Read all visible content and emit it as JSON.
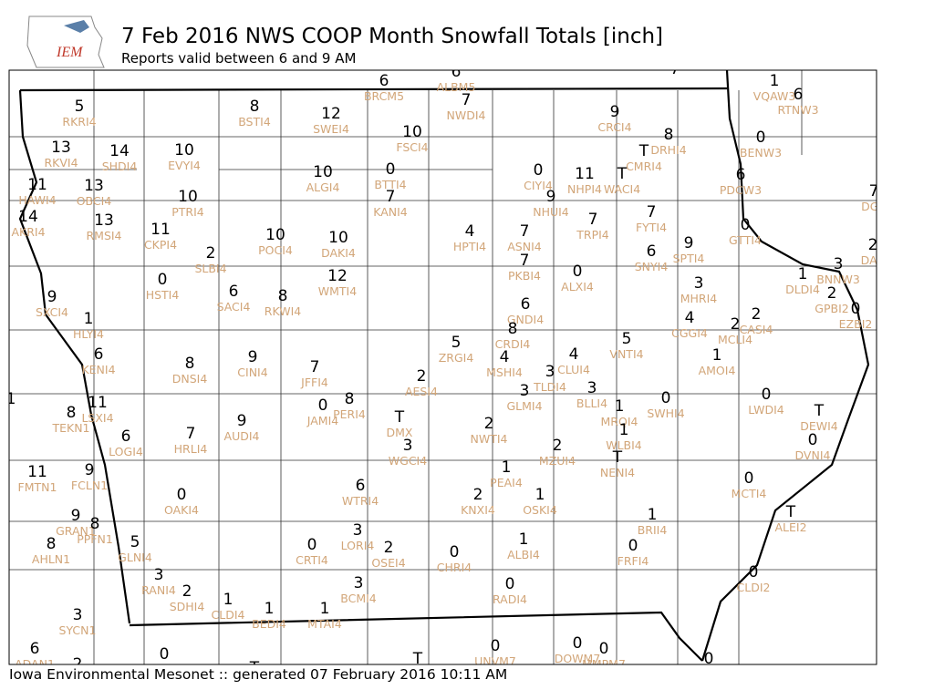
{
  "header": {
    "logo": "IEM",
    "title": "7 Feb 2016 NWS COOP Month Snowfall Totals [inch]",
    "subtitle": "Reports valid between 6 and 9 AM"
  },
  "stations": [
    {
      "value": 5,
      "id": "RKRI4"
    },
    {
      "value": 8,
      "id": "BSTI4"
    },
    {
      "value": 12,
      "id": "SWEI4"
    },
    {
      "value": 6,
      "id": "BRCM5"
    },
    {
      "value": 6,
      "id": "ALBM5"
    },
    {
      "value": 7,
      "id": "NWDI4"
    },
    {
      "value": 10,
      "id": "FSCI4"
    },
    {
      "value": 9,
      "id": "CRCI4"
    },
    {
      "value": 8,
      "id": "DRHI4"
    },
    {
      "value": "T",
      "id": "CMRI4"
    },
    {
      "value": 1,
      "id": "VQAW3"
    },
    {
      "value": 6,
      "id": "RTNW3"
    },
    {
      "value": 0,
      "id": "BENW3"
    },
    {
      "value": 13,
      "id": "RKVI4"
    },
    {
      "value": 14,
      "id": "SHDI4"
    },
    {
      "value": 10,
      "id": "EVYI4"
    },
    {
      "value": 10,
      "id": "ALGI4"
    },
    {
      "value": 0,
      "id": "BTTI4"
    },
    {
      "value": 0,
      "id": "CIYI4"
    },
    {
      "value": 11,
      "id": "NHPI4"
    },
    {
      "value": "T",
      "id": "WACI4"
    },
    {
      "value": 6,
      "id": "PDCW3"
    },
    {
      "value": 11,
      "id": "HAWI4"
    },
    {
      "value": 13,
      "id": "OBCI4"
    },
    {
      "value": 10,
      "id": "PTRI4"
    },
    {
      "value": 7,
      "id": "KANI4"
    },
    {
      "value": 9,
      "id": "NHUI4"
    },
    {
      "value": 7,
      "id": "FYTI4"
    },
    {
      "value": 7,
      "id": "DGV"
    },
    {
      "value": 14,
      "id": "AKRI4"
    },
    {
      "value": 13,
      "id": "RMSI4"
    },
    {
      "value": 11,
      "id": "CKPI4"
    },
    {
      "value": 10,
      "id": "POCI4"
    },
    {
      "value": 10,
      "id": "DAKI4"
    },
    {
      "value": 4,
      "id": "HPTI4"
    },
    {
      "value": 7,
      "id": "ASNI4"
    },
    {
      "value": 7,
      "id": "TRPI4"
    },
    {
      "value": 0,
      "id": "GTTI4"
    },
    {
      "value": 2,
      "id": "DAR"
    },
    {
      "value": 9,
      "id": "SPTI4"
    },
    {
      "value": 6,
      "id": "SNYI4"
    },
    {
      "value": 2,
      "id": "SLBI4"
    },
    {
      "value": 7,
      "id": "PKBI4"
    },
    {
      "value": 0,
      "id": "ALXI4"
    },
    {
      "value": 3,
      "id": "MHRI4"
    },
    {
      "value": 3,
      "id": "BNNW3"
    },
    {
      "value": 1,
      "id": "DLDI4"
    },
    {
      "value": 0,
      "id": "HSTI4"
    },
    {
      "value": 12,
      "id": "WMTI4"
    },
    {
      "value": 6,
      "id": "SACI4"
    },
    {
      "value": 8,
      "id": "RKWI4"
    },
    {
      "value": 2,
      "id": "GPBI2"
    },
    {
      "value": 0,
      "id": "EZBI2"
    },
    {
      "value": 9,
      "id": "SXCI4"
    },
    {
      "value": 1,
      "id": "HLYI4"
    },
    {
      "value": 6,
      "id": "GNDI4"
    },
    {
      "value": 4,
      "id": "CGGI4"
    },
    {
      "value": 2,
      "id": "CASI4"
    },
    {
      "value": 2,
      "id": "MCLI4"
    },
    {
      "value": 8,
      "id": "CRDI4"
    },
    {
      "value": 5,
      "id": "ZRGI4"
    },
    {
      "value": 5,
      "id": "VNTI4"
    },
    {
      "value": 6,
      "id": "KENI4"
    },
    {
      "value": 4,
      "id": "MSHI4"
    },
    {
      "value": 4,
      "id": "CLUI4"
    },
    {
      "value": 8,
      "id": "DNSI4"
    },
    {
      "value": 9,
      "id": "CINI4"
    },
    {
      "value": 7,
      "id": "JFFI4"
    },
    {
      "value": 1,
      "id": "AMOI4"
    },
    {
      "value": 3,
      "id": "TLDI4"
    },
    {
      "value": 2,
      "id": "AESI4"
    },
    {
      "value": 3,
      "id": "BLLI4"
    },
    {
      "value": 3,
      "id": "GLMI4"
    },
    {
      "value": 0,
      "id": "LWDI4"
    },
    {
      "value": 1
    },
    {
      "value": 8,
      "id": "TEKN1"
    },
    {
      "value": 11,
      "id": "LSXI4"
    },
    {
      "value": 0,
      "id": "JAMI4"
    },
    {
      "value": 8,
      "id": "PERI4"
    },
    {
      "value": "T",
      "id": "DMX"
    },
    {
      "value": 1,
      "id": "MRQI4"
    },
    {
      "value": 0,
      "id": "SWHI4"
    },
    {
      "value": "T",
      "id": "DEWI4"
    },
    {
      "value": 6,
      "id": "LOGI4"
    },
    {
      "value": 7,
      "id": "HRLI4"
    },
    {
      "value": 9,
      "id": "AUDI4"
    },
    {
      "value": 2,
      "id": "NWTI4"
    },
    {
      "value": 1,
      "id": "WLBI4"
    },
    {
      "value": 3,
      "id": "WGCI4"
    },
    {
      "value": 2,
      "id": "MZUI4"
    },
    {
      "value": 0,
      "id": "DVNI4"
    },
    {
      "value": "T",
      "id": "NENI4"
    },
    {
      "value": 11,
      "id": "FMTN1"
    },
    {
      "value": 9,
      "id": "FCLN1"
    },
    {
      "value": 1,
      "id": "PEAI4"
    },
    {
      "value": 0,
      "id": "MCTI4"
    },
    {
      "value": 0,
      "id": "OAKI4"
    },
    {
      "value": 6,
      "id": "WTRI4"
    },
    {
      "value": 2,
      "id": "KNXI4"
    },
    {
      "value": 1,
      "id": "OSKI4"
    },
    {
      "value": "T",
      "id": "ALEI2"
    },
    {
      "value": 9,
      "id": "GRAN1"
    },
    {
      "value": 8,
      "id": "PPFN1"
    },
    {
      "value": 1,
      "id": "BRII4"
    },
    {
      "value": 8,
      "id": "AHLN1"
    },
    {
      "value": 5,
      "id": "GLNI4"
    },
    {
      "value": 3,
      "id": "LORI4"
    },
    {
      "value": 1,
      "id": "ALBI4"
    },
    {
      "value": 0,
      "id": "CRTI4"
    },
    {
      "value": 2,
      "id": "OSEI4"
    },
    {
      "value": 0,
      "id": "CHRI4"
    },
    {
      "value": 0,
      "id": "FRFI4"
    },
    {
      "value": 0,
      "id": "CLDI2"
    },
    {
      "value": 3,
      "id": "RANI4"
    },
    {
      "value": 2,
      "id": "SDHI4"
    },
    {
      "value": 3,
      "id": "BCMI4"
    },
    {
      "value": 0,
      "id": "RADI4"
    },
    {
      "value": 1,
      "id": "CLDI4"
    },
    {
      "value": 1,
      "id": "BEDI4"
    },
    {
      "value": 1,
      "id": "MTAI4"
    },
    {
      "value": 3,
      "id": "SYCN1"
    },
    {
      "value": 6,
      "id": "ADAN1"
    },
    {
      "value": 2
    },
    {
      "value": 0
    },
    {
      "value": "T"
    },
    {
      "value": "T"
    },
    {
      "value": 0,
      "id": "UNVM7"
    },
    {
      "value": 0,
      "id": "DOWM7"
    },
    {
      "value": 0,
      "id": "MMPM7"
    },
    {
      "value": 0
    },
    {
      "value": 7
    }
  ],
  "footer": "Iowa Environmental Mesonet :: generated 07 February 2016 10:11 AM"
}
